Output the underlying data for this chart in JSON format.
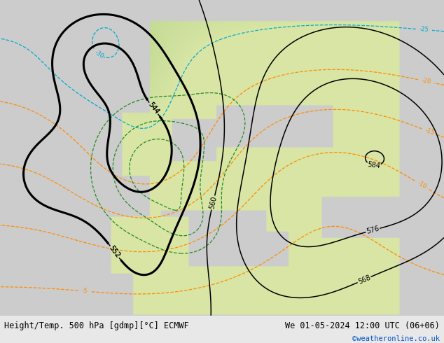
{
  "title_left": "Height/Temp. 500 hPa [gdmp][°C] ECMWF",
  "title_right": "We 01-05-2024 12:00 UTC (06+06)",
  "credit": "©weatheronline.co.uk",
  "figsize": [
    6.34,
    4.9
  ],
  "dpi": 100
}
